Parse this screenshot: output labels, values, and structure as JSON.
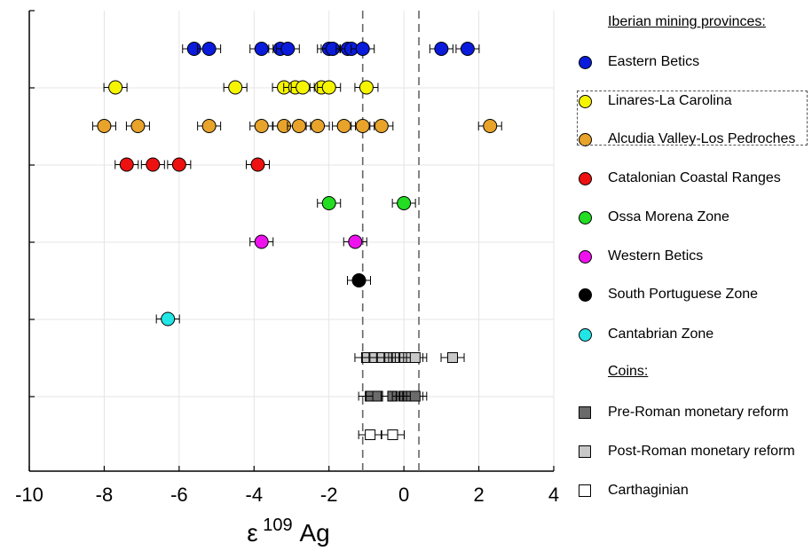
{
  "chart_data": {
    "type": "scatter",
    "xlim": [
      -10,
      4
    ],
    "xticks": [
      "-10",
      "-8",
      "-6",
      "-4",
      "-2",
      "0",
      "2",
      "4"
    ],
    "xlabel": "ε",
    "xlabel_sup": "109",
    "xlabel_tail": " Ag",
    "grid": true,
    "reference_lines_x": [
      -1.1,
      0.4
    ],
    "series": [
      {
        "name": "Eastern Betics",
        "color": "#0a1bdc",
        "marker": "circle",
        "row": 1,
        "x": [
          -5.6,
          -5.2,
          -3.8,
          -3.3,
          -3.1,
          -2.0,
          -1.9,
          -1.5,
          -1.4,
          -1.1,
          1.0,
          1.7
        ]
      },
      {
        "name": "Linares-La Carolina",
        "color": "#f5f500",
        "marker": "circle",
        "row": 2,
        "x": [
          -7.7,
          -4.5,
          -3.2,
          -2.9,
          -2.7,
          -2.2,
          -2.0,
          -1.0
        ]
      },
      {
        "name": "Alcudia Valley-Los Pedroches",
        "color": "#e8a32a",
        "marker": "circle",
        "row": 3,
        "x": [
          -8.0,
          -7.1,
          -5.2,
          -3.8,
          -3.2,
          -2.8,
          -2.3,
          -1.6,
          -1.1,
          -0.6,
          2.3
        ]
      },
      {
        "name": "Catalonian Coastal Ranges",
        "color": "#ee1111",
        "marker": "circle",
        "row": 4,
        "x": [
          -7.4,
          -6.7,
          -6.0,
          -3.9
        ]
      },
      {
        "name": "Ossa Morena Zone",
        "color": "#22dd22",
        "marker": "circle",
        "row": 5,
        "x": [
          -2.0,
          0.0
        ]
      },
      {
        "name": "Western Betics",
        "color": "#ee11ee",
        "marker": "circle",
        "row": 6,
        "x": [
          -3.8,
          -1.3
        ]
      },
      {
        "name": "South Portuguese Zone",
        "color": "#000000",
        "marker": "circle",
        "row": 7,
        "x": [
          -1.2
        ]
      },
      {
        "name": "Cantabrian Zone",
        "color": "#22e6e6",
        "marker": "circle",
        "row": 8,
        "x": [
          -6.3
        ]
      },
      {
        "name": "Post-Roman monetary reform",
        "color": "#c8c8c8",
        "marker": "square",
        "row": 9,
        "x": [
          -1.0,
          -0.8,
          -0.6,
          -0.4,
          -0.2,
          -0.1,
          0.0,
          0.2,
          0.3,
          1.3
        ]
      },
      {
        "name": "Pre-Roman monetary reform",
        "color": "#6b6b6b",
        "marker": "square",
        "row": 10,
        "x": [
          -0.9,
          -0.7,
          -0.3,
          0.0,
          0.1,
          0.2,
          0.3
        ]
      },
      {
        "name": "Carthaginian",
        "color": "#ffffff",
        "marker": "square",
        "row": 11,
        "x": [
          -0.9,
          -0.3
        ]
      }
    ]
  },
  "legend": {
    "provinces_heading": "Iberian mining provinces:",
    "coins_heading": "Coins:",
    "items": [
      {
        "label": "Eastern Betics",
        "color": "#0a1bdc",
        "marker": "circle"
      },
      {
        "label": "Linares-La Carolina",
        "color": "#f5f500",
        "marker": "circle"
      },
      {
        "label": "Alcudia Valley-Los Pedroches",
        "color": "#e8a32a",
        "marker": "circle"
      },
      {
        "label": "Catalonian Coastal Ranges",
        "color": "#ee1111",
        "marker": "circle"
      },
      {
        "label": "Ossa Morena Zone",
        "color": "#22dd22",
        "marker": "circle"
      },
      {
        "label": "Western Betics",
        "color": "#ee11ee",
        "marker": "circle"
      },
      {
        "label": "South Portuguese Zone",
        "color": "#000000",
        "marker": "circle"
      },
      {
        "label": "Cantabrian Zone",
        "color": "#22e6e6",
        "marker": "circle"
      }
    ],
    "coin_items": [
      {
        "label": "Pre-Roman monetary reform",
        "color": "#6b6b6b",
        "marker": "square"
      },
      {
        "label": "Post-Roman monetary reform",
        "color": "#c8c8c8",
        "marker": "square"
      },
      {
        "label": "Carthaginian",
        "color": "#ffffff",
        "marker": "square"
      }
    ]
  }
}
